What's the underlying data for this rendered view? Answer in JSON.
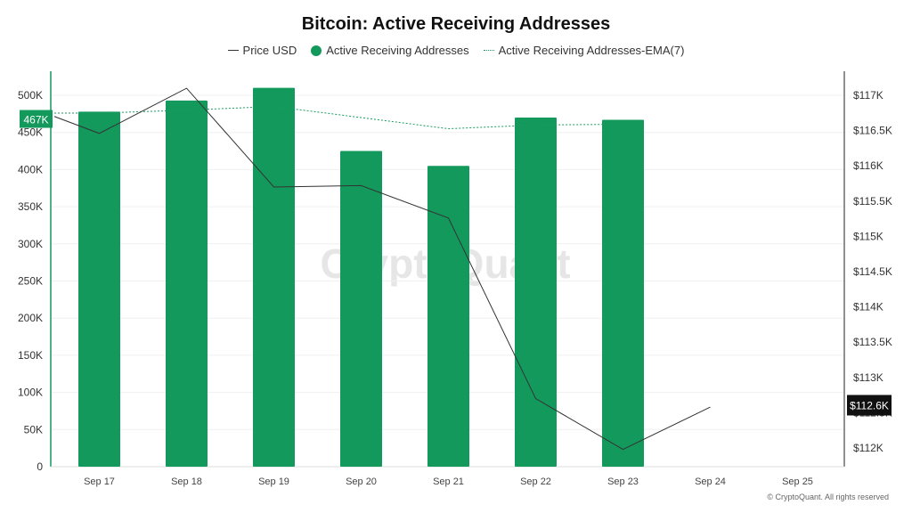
{
  "chart_data": {
    "type": "bar",
    "title": "Bitcoin: Active Receiving Addresses",
    "categories": [
      "Sep 17",
      "Sep 18",
      "Sep 19",
      "Sep 20",
      "Sep 21",
      "Sep 22",
      "Sep 23",
      "Sep 24",
      "Sep 25"
    ],
    "series": [
      {
        "name": "Active Receiving Addresses",
        "type": "bar",
        "axis": "left",
        "color": "#14995d",
        "values": [
          478000,
          493000,
          510000,
          425000,
          405000,
          470000,
          467000,
          null,
          null
        ]
      },
      {
        "name": "Active Receiving Addresses-EMA(7)",
        "type": "line",
        "axis": "left",
        "color": "#1a9b5f",
        "dashed": true,
        "values": [
          476000,
          480000,
          485000,
          470000,
          455000,
          460000,
          461000,
          null,
          null
        ]
      },
      {
        "name": "Price USD",
        "type": "line",
        "axis": "right",
        "color": "#333333",
        "values": [
          116460,
          117100,
          115700,
          115720,
          115260,
          112700,
          111980,
          112580,
          null
        ]
      }
    ],
    "left_axis": {
      "min": 0,
      "max": 500000,
      "ticks": [
        0,
        50000,
        100000,
        150000,
        200000,
        250000,
        300000,
        350000,
        400000,
        450000,
        500000
      ],
      "tick_labels": [
        "0",
        "50K",
        "100K",
        "150K",
        "200K",
        "250K",
        "300K",
        "350K",
        "400K",
        "450K",
        "500K"
      ]
    },
    "right_axis": {
      "min": 112000,
      "max": 117000,
      "ticks": [
        112000,
        112500,
        113000,
        113500,
        114000,
        114500,
        115000,
        115500,
        116000,
        116500,
        117000
      ],
      "tick_labels": [
        "$112K",
        "$112.5K",
        "$113K",
        "$113.5K",
        "$114K",
        "$114.5K",
        "$115K",
        "$115.5K",
        "$116K",
        "$116.5K",
        "$117K"
      ]
    },
    "current_left_value": 467000,
    "current_left_label": "467K",
    "current_right_value": 112600,
    "current_right_label": "$112.6K",
    "grid": true,
    "legend": "top-center",
    "watermark": "CryptoQuant"
  },
  "legend": {
    "price": "Price USD",
    "active": "Active Receiving Addresses",
    "ema": "Active Receiving Addresses-EMA(7)"
  },
  "copyright": "© CryptoQuant. All rights reserved"
}
